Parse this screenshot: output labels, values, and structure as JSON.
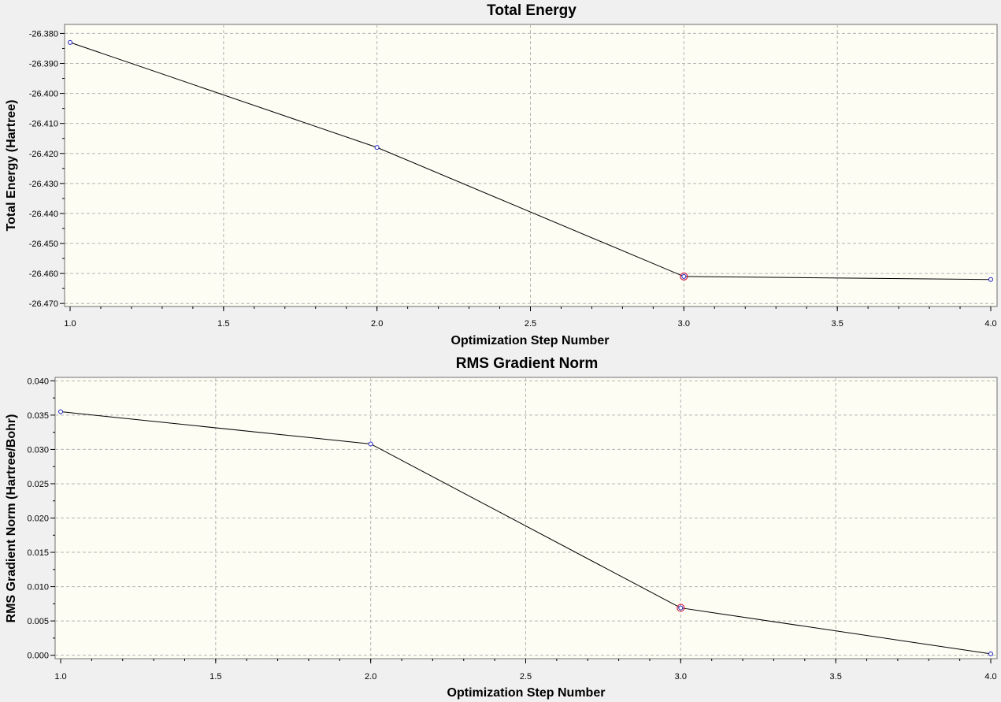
{
  "colors": {
    "background": "#f0f0f0",
    "plot_background": "#fdfdf4",
    "grid": "#b4b4b4",
    "line": "#000000",
    "point_edge": "#2020c8",
    "highlight": "#d02040"
  },
  "chart_data": [
    {
      "type": "line",
      "title": "Total Energy",
      "xlabel": "Optimization Step Number",
      "ylabel": "Total Energy (Hartree)",
      "x": [
        1,
        2,
        3,
        4
      ],
      "series": [
        {
          "values": [
            -26.383,
            -26.418,
            -26.461,
            -26.462
          ]
        }
      ],
      "highlighted_x": 3,
      "xlim": [
        1.0,
        4.0
      ],
      "ylim": [
        -26.471,
        -26.377
      ],
      "x_ticks": [
        1.0,
        1.5,
        2.0,
        2.5,
        3.0,
        3.5,
        4.0
      ],
      "x_tick_labels": [
        "1.0",
        "1.5",
        "2.0",
        "2.5",
        "3.0",
        "3.5",
        "4.0"
      ],
      "y_ticks": [
        -26.38,
        -26.39,
        -26.4,
        -26.41,
        -26.42,
        -26.43,
        -26.44,
        -26.45,
        -26.46,
        -26.47
      ],
      "y_tick_labels": [
        "-26.380",
        "-26.390",
        "-26.400",
        "-26.410",
        "-26.420",
        "-26.430",
        "-26.440",
        "-26.450",
        "-26.460",
        "-26.470"
      ],
      "grid": true
    },
    {
      "type": "line",
      "title": "RMS Gradient Norm",
      "xlabel": "Optimization Step Number",
      "ylabel": "RMS Gradient Norm (Hartree/Bohr)",
      "x": [
        1,
        2,
        3,
        4
      ],
      "series": [
        {
          "values": [
            0.0355,
            0.0308,
            0.0069,
            0.0002
          ]
        }
      ],
      "highlighted_x": 3,
      "xlim": [
        1.0,
        4.0
      ],
      "ylim": [
        -0.0005,
        0.0405
      ],
      "x_ticks": [
        1.0,
        1.5,
        2.0,
        2.5,
        3.0,
        3.5,
        4.0
      ],
      "x_tick_labels": [
        "1.0",
        "1.5",
        "2.0",
        "2.5",
        "3.0",
        "3.5",
        "4.0"
      ],
      "y_ticks": [
        0.0,
        0.005,
        0.01,
        0.015,
        0.02,
        0.025,
        0.03,
        0.035,
        0.04
      ],
      "y_tick_labels": [
        "0.000",
        "0.005",
        "0.010",
        "0.015",
        "0.020",
        "0.025",
        "0.030",
        "0.035",
        "0.040"
      ],
      "grid": true
    }
  ]
}
